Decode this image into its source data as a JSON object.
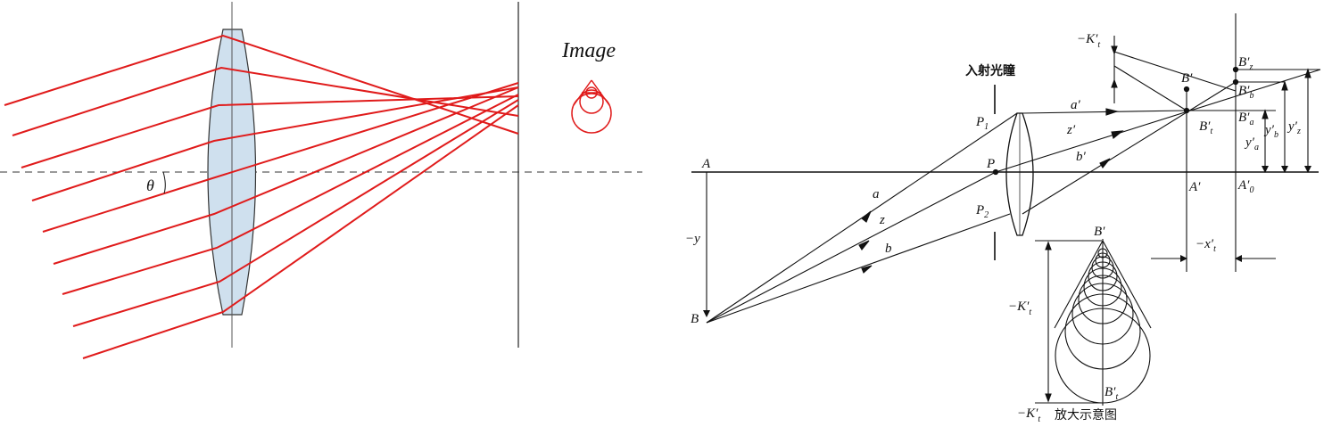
{
  "left_figure": {
    "image_label": "Image",
    "angle_label": "θ",
    "colors": {
      "ray": "#e01b1b",
      "lens_fill": "#cfe0ee",
      "axis": "#333333"
    }
  },
  "right_figure": {
    "entrance_pupil": "入射光瞳",
    "magnified_caption_symbol": "−K′",
    "magnified_caption_sub": "t",
    "magnified_caption_text": "放大示意图",
    "labels": {
      "neg_kt_top": "−K′",
      "neg_kt_top_sub": "t",
      "neg_kt_mid": "−K′",
      "neg_kt_mid_sub": "t",
      "point_A": "A",
      "point_B": "B",
      "neg_y": "−y",
      "ray_a": "a",
      "ray_z": "z",
      "ray_b": "b",
      "ray_a_prime": "a′",
      "ray_z_prime": "z′",
      "ray_b_prime": "b′",
      "P1": "P",
      "P1_sub": "1",
      "P": "P",
      "P2": "P",
      "P2_sub": "2",
      "B_prime": "B′",
      "Bt_prime": "B′",
      "Bt_prime_sub": "t",
      "A_prime": "A′",
      "A0_prime": "A′",
      "A0_prime_sub": "0",
      "Bz_prime": "B′",
      "Bz_prime_sub": "z",
      "Bb_prime": "B′",
      "Bb_prime_sub": "b",
      "Ba_prime": "B′",
      "Ba_prime_sub": "a",
      "ya_prime": "y′",
      "ya_prime_sub": "a",
      "yb_prime": "y′",
      "yb_prime_sub": "b",
      "yz_prime": "y′",
      "yz_prime_sub": "z",
      "neg_xt": "−x′",
      "neg_xt_sub": "t",
      "mag_B_prime": "B′",
      "mag_Bt_prime": "B′",
      "mag_Bt_prime_sub": "t"
    }
  }
}
